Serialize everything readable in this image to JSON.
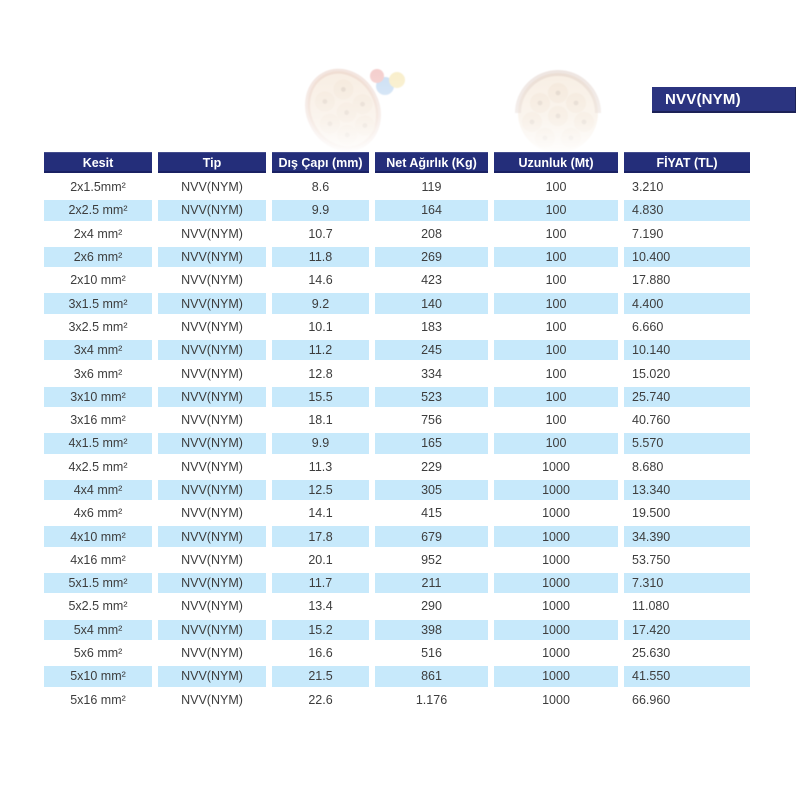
{
  "colors": {
    "navy_header": "#242e7a",
    "navy_badge": "#2b3480",
    "stripe_blue": "#c7e9fb",
    "cell_text": "#3d3d3d"
  },
  "badge": {
    "label": "NVV(NYM)"
  },
  "hero": {
    "image_name": "faded-cable-cross-sections-photo"
  },
  "table": {
    "headers": [
      "Kesit",
      "Tip",
      "Dış Çapı (mm)",
      "Net Ağırlık (Kg)",
      "Uzunluk (Mt)",
      "FİYAT (TL)"
    ],
    "rows": [
      [
        "2x1.5mm²",
        "NVV(NYM)",
        "8.6",
        "119",
        "100",
        "3.210"
      ],
      [
        "2x2.5 mm²",
        "NVV(NYM)",
        "9.9",
        "164",
        "100",
        "4.830"
      ],
      [
        "2x4 mm²",
        "NVV(NYM)",
        "10.7",
        "208",
        "100",
        "7.190"
      ],
      [
        "2x6 mm²",
        "NVV(NYM)",
        "11.8",
        "269",
        "100",
        "10.400"
      ],
      [
        "2x10 mm²",
        "NVV(NYM)",
        "14.6",
        "423",
        "100",
        "17.880"
      ],
      [
        "3x1.5 mm²",
        "NVV(NYM)",
        "9.2",
        "140",
        "100",
        "4.400"
      ],
      [
        "3x2.5 mm²",
        "NVV(NYM)",
        "10.1",
        "183",
        "100",
        "6.660"
      ],
      [
        "3x4 mm²",
        "NVV(NYM)",
        "11.2",
        "245",
        "100",
        "10.140"
      ],
      [
        "3x6 mm²",
        "NVV(NYM)",
        "12.8",
        "334",
        "100",
        "15.020"
      ],
      [
        "3x10 mm²",
        "NVV(NYM)",
        "15.5",
        "523",
        "100",
        "25.740"
      ],
      [
        "3x16 mm²",
        "NVV(NYM)",
        "18.1",
        "756",
        "100",
        "40.760"
      ],
      [
        "4x1.5 mm²",
        "NVV(NYM)",
        "9.9",
        "165",
        "100",
        "5.570"
      ],
      [
        "4x2.5 mm²",
        "NVV(NYM)",
        "11.3",
        "229",
        "1000",
        "8.680"
      ],
      [
        "4x4 mm²",
        "NVV(NYM)",
        "12.5",
        "305",
        "1000",
        "13.340"
      ],
      [
        "4x6 mm²",
        "NVV(NYM)",
        "14.1",
        "415",
        "1000",
        "19.500"
      ],
      [
        "4x10 mm²",
        "NVV(NYM)",
        "17.8",
        "679",
        "1000",
        "34.390"
      ],
      [
        "4x16 mm²",
        "NVV(NYM)",
        "20.1",
        "952",
        "1000",
        "53.750"
      ],
      [
        "5x1.5 mm²",
        "NVV(NYM)",
        "11.7",
        "211",
        "1000",
        "7.310"
      ],
      [
        "5x2.5 mm²",
        "NVV(NYM)",
        "13.4",
        "290",
        "1000",
        "11.080"
      ],
      [
        "5x4 mm²",
        "NVV(NYM)",
        "15.2",
        "398",
        "1000",
        "17.420"
      ],
      [
        "5x6 mm²",
        "NVV(NYM)",
        "16.6",
        "516",
        "1000",
        "25.630"
      ],
      [
        "5x10 mm²",
        "NVV(NYM)",
        "21.5",
        "861",
        "1000",
        "41.550"
      ],
      [
        "5x16 mm²",
        "NVV(NYM)",
        "22.6",
        "1.176",
        "1000",
        "66.960"
      ]
    ]
  }
}
